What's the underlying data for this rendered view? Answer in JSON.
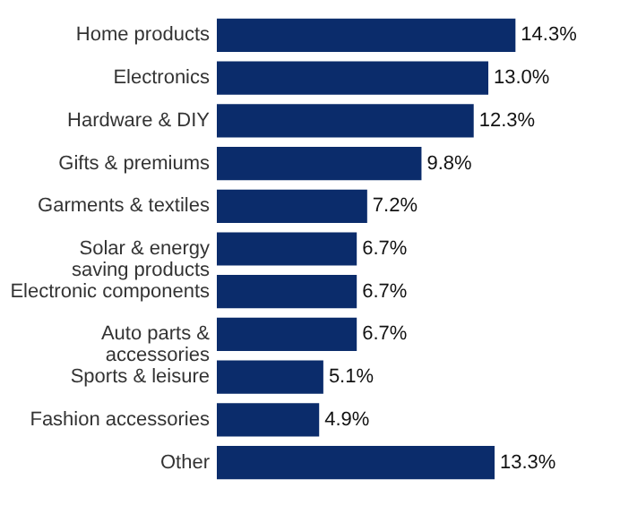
{
  "chart_data": {
    "type": "bar",
    "orientation": "horizontal",
    "value_labels": [
      "14.3%",
      "13.0%",
      "12.3%",
      "9.8%",
      "7.2%",
      "6.7%",
      "6.7%",
      "6.7%",
      "5.1%",
      "4.9%",
      "13.3%"
    ],
    "categories": [
      "Home products",
      "Electronics",
      "Hardware & DIY",
      "Gifts & premiums",
      "Garments & textiles",
      "Solar & energy saving products",
      "Electronic components",
      "Auto parts & accessories",
      "Sports & leisure",
      "Fashion accessories",
      "Other"
    ],
    "values": [
      14.3,
      13.0,
      12.3,
      9.8,
      7.2,
      6.7,
      6.7,
      6.7,
      5.1,
      4.9,
      13.3
    ],
    "color": "#0b2c6b"
  }
}
